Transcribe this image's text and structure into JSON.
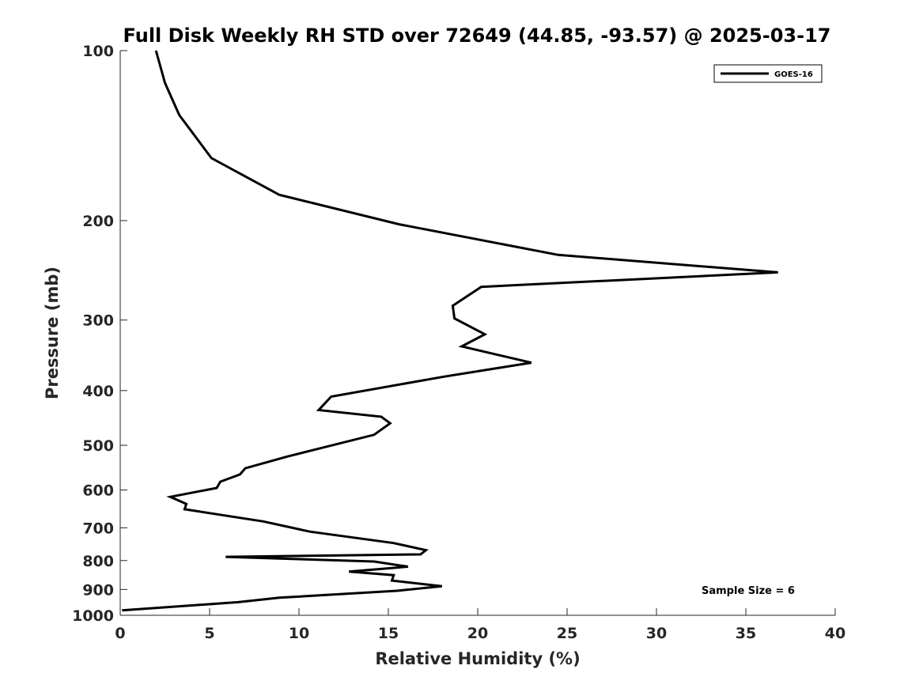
{
  "chart_data": {
    "type": "line",
    "title": "Full Disk Weekly RH STD over 72649 (44.85, -93.57) @ 2025-03-17",
    "xlabel": "Relative Humidity (%)",
    "ylabel": "Pressure (mb)",
    "xlim": [
      0,
      40
    ],
    "ylim": [
      100,
      1000
    ],
    "y_scale": "log",
    "y_reversed": true,
    "x_ticks": [
      0,
      5,
      10,
      15,
      20,
      25,
      30,
      35,
      40
    ],
    "x_tick_labels": [
      "0",
      "5",
      "10",
      "15",
      "20",
      "25",
      "30",
      "35",
      "40"
    ],
    "y_ticks": [
      100,
      200,
      300,
      400,
      500,
      600,
      700,
      800,
      900,
      1000
    ],
    "y_tick_labels": [
      "100",
      "200",
      "300",
      "400",
      "500",
      "600",
      "700",
      "800",
      "900",
      "1000"
    ],
    "grid": false,
    "legend_position": "top-right",
    "annotation": "Sample Size = 6",
    "series": [
      {
        "name": "GOES-16",
        "color": "#000000",
        "x": [
          2.0,
          2.5,
          3.3,
          5.1,
          8.9,
          15.6,
          24.5,
          36.8,
          20.2,
          18.6,
          18.7,
          20.4,
          19.1,
          23.0,
          18.1,
          11.8,
          11.1,
          14.6,
          15.1,
          14.2,
          11.3,
          9.3,
          7.0,
          6.7,
          5.6,
          5.4,
          2.8,
          3.7,
          3.6,
          8.0,
          10.6,
          15.3,
          17.1,
          16.8,
          5.9,
          14.2,
          16.1,
          12.8,
          15.3,
          15.2,
          18.0,
          15.5,
          8.9,
          6.6,
          0.1
        ],
        "y": [
          100,
          114,
          130,
          155,
          180,
          203,
          230,
          247,
          262,
          283,
          298,
          318,
          334,
          357,
          378,
          410,
          433,
          445,
          457,
          479,
          505,
          524,
          549,
          563,
          580,
          595,
          617,
          635,
          649,
          682,
          711,
          745,
          767,
          780,
          788,
          803,
          820,
          837,
          849,
          868,
          888,
          905,
          931,
          948,
          980
        ]
      }
    ]
  }
}
